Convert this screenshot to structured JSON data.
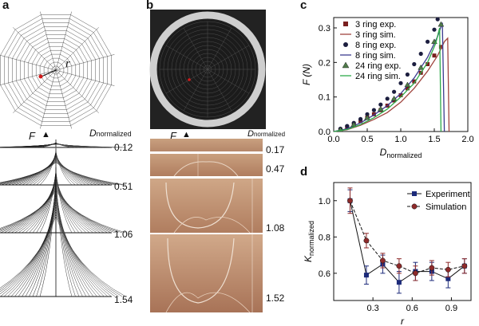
{
  "panels": {
    "a": "a",
    "b": "b",
    "c": "c",
    "d": "d"
  },
  "panel_a": {
    "r_label": "r",
    "force_label": "F",
    "d_label": "D",
    "d_sub": "normalized",
    "d_values": [
      "0.12",
      "0.51",
      "1.06",
      "1.54"
    ]
  },
  "panel_b": {
    "force_label": "F",
    "d_label": "D",
    "d_sub": "normalized",
    "d_values": [
      "0.17",
      "0.47",
      "1.08",
      "1.52"
    ]
  },
  "chart_data": [
    {
      "panel": "c",
      "type": "scatter",
      "ylabel": "F (N)",
      "xlabel": "D normalized",
      "xlim": [
        0,
        2.0
      ],
      "ylim": [
        0,
        0.33
      ],
      "xticks": [
        "0.0",
        "0.5",
        "1.0",
        "1.5",
        "2.0"
      ],
      "yticks": [
        "0.0",
        "0.1",
        "0.2",
        "0.3"
      ],
      "legend_position": "top-right",
      "series": [
        {
          "name": "3 ring exp.",
          "kind": "points",
          "marker": "square",
          "color": "#7a1f1f",
          "x": [
            0.1,
            0.2,
            0.3,
            0.4,
            0.5,
            0.6,
            0.7,
            0.8,
            0.9,
            1.0,
            1.1,
            1.2,
            1.3,
            1.4,
            1.5,
            1.6
          ],
          "y": [
            0.005,
            0.012,
            0.02,
            0.03,
            0.04,
            0.05,
            0.062,
            0.075,
            0.09,
            0.105,
            0.125,
            0.145,
            0.17,
            0.195,
            0.22,
            0.245
          ]
        },
        {
          "name": "3 ring sim.",
          "kind": "line",
          "color": "#a0453f",
          "x": [
            0,
            0.2,
            0.4,
            0.6,
            0.8,
            1.0,
            1.2,
            1.4,
            1.55,
            1.65,
            1.7,
            1.72
          ],
          "y": [
            0,
            0.005,
            0.018,
            0.035,
            0.055,
            0.085,
            0.125,
            0.175,
            0.22,
            0.26,
            0.27,
            0.0
          ]
        },
        {
          "name": "8 ring exp.",
          "kind": "points",
          "marker": "circle",
          "color": "#1c1e3f",
          "x": [
            0.1,
            0.2,
            0.3,
            0.4,
            0.5,
            0.6,
            0.7,
            0.8,
            0.9,
            1.0,
            1.1,
            1.2,
            1.3,
            1.4,
            1.5,
            1.55
          ],
          "y": [
            0.008,
            0.016,
            0.025,
            0.036,
            0.05,
            0.062,
            0.078,
            0.095,
            0.115,
            0.14,
            0.165,
            0.195,
            0.225,
            0.26,
            0.295,
            0.325
          ]
        },
        {
          "name": "8 ring sim.",
          "kind": "line",
          "color": "#3b3b8f",
          "x": [
            0,
            0.2,
            0.4,
            0.6,
            0.8,
            1.0,
            1.2,
            1.4,
            1.55,
            1.62,
            1.65
          ],
          "y": [
            0,
            0.008,
            0.025,
            0.048,
            0.075,
            0.11,
            0.155,
            0.215,
            0.275,
            0.315,
            0.0
          ]
        },
        {
          "name": "24 ring exp.",
          "kind": "points",
          "marker": "triangle",
          "color": "#4f7a4a",
          "x": [
            0.1,
            0.3,
            0.5,
            0.7,
            0.9,
            1.1,
            1.3,
            1.5,
            1.6
          ],
          "y": [
            0.005,
            0.02,
            0.04,
            0.065,
            0.095,
            0.135,
            0.185,
            0.26,
            0.31
          ]
        },
        {
          "name": "24 ring sim.",
          "kind": "line",
          "color": "#2eaa4a",
          "x": [
            0,
            0.2,
            0.4,
            0.6,
            0.8,
            1.0,
            1.2,
            1.4,
            1.52,
            1.58,
            1.6
          ],
          "y": [
            0,
            0.006,
            0.02,
            0.04,
            0.065,
            0.1,
            0.14,
            0.2,
            0.255,
            0.3,
            0.0
          ]
        }
      ]
    },
    {
      "panel": "d",
      "type": "line",
      "ylabel": "K normalized",
      "xlabel": "r",
      "xlim": [
        0,
        1.05
      ],
      "ylim": [
        0.45,
        1.1
      ],
      "xticks": [
        "0.3",
        "0.6",
        "0.9"
      ],
      "yticks": [
        "0.6",
        "0.8",
        "1.0"
      ],
      "legend_position": "top-right",
      "series": [
        {
          "name": "Experiment",
          "marker": "square",
          "color": "#1c2a7a",
          "x": [
            0.125,
            0.25,
            0.375,
            0.5,
            0.625,
            0.75,
            0.875,
            1.0
          ],
          "y": [
            1.0,
            0.59,
            0.65,
            0.55,
            0.61,
            0.61,
            0.57,
            0.64
          ],
          "err": [
            0.06,
            0.05,
            0.05,
            0.06,
            0.05,
            0.05,
            0.05,
            0.04
          ]
        },
        {
          "name": "Simulation",
          "marker": "circle",
          "color": "#8e2a2a",
          "x": [
            0.125,
            0.25,
            0.375,
            0.5,
            0.625,
            0.75,
            0.875,
            1.0
          ],
          "y": [
            1.0,
            0.78,
            0.67,
            0.64,
            0.6,
            0.63,
            0.62,
            0.64
          ],
          "err": [
            0.07,
            0.04,
            0.04,
            0.04,
            0.04,
            0.04,
            0.04,
            0.04
          ]
        }
      ]
    }
  ]
}
